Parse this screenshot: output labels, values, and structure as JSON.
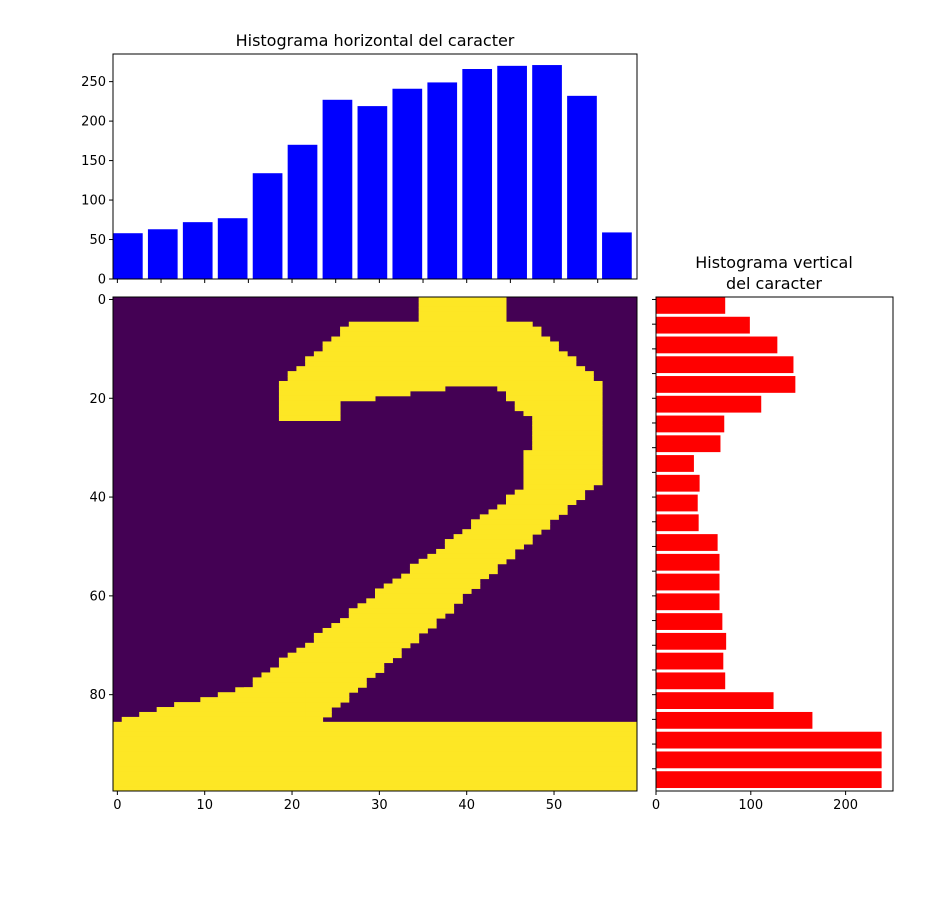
{
  "colors": {
    "top_bars": "#0000ff",
    "right_bars": "#ff0000",
    "image_background": "#440154",
    "image_foreground": "#fde725"
  },
  "chart_data": [
    {
      "type": "bar",
      "title": "Histograma horizontal del caracter",
      "xlabel": "",
      "ylabel": "",
      "x": [
        0,
        4,
        8,
        12,
        16,
        20,
        24,
        28,
        32,
        36,
        40,
        44,
        48,
        52,
        56
      ],
      "values": [
        58,
        63,
        72,
        77,
        134,
        170,
        227,
        219,
        241,
        249,
        266,
        270,
        271,
        232,
        59
      ],
      "ylim": [
        0,
        285
      ],
      "xlim": [
        -0.5,
        59.5
      ],
      "yticks": [
        "0",
        "50",
        "100",
        "150",
        "200",
        "250"
      ],
      "color": "#0000ff"
    },
    {
      "type": "bar",
      "orientation": "horizontal",
      "title_lines": [
        "Histograma vertical",
        "del caracter"
      ],
      "y": [
        0,
        4,
        8,
        12,
        16,
        20,
        24,
        28,
        32,
        36,
        40,
        44,
        48,
        52,
        56,
        60,
        64,
        68,
        72,
        76,
        80,
        84,
        88,
        92,
        96
      ],
      "values": [
        73,
        99,
        128,
        145,
        147,
        111,
        72,
        68,
        40,
        46,
        44,
        45,
        65,
        67,
        67,
        67,
        70,
        74,
        71,
        73,
        124,
        165,
        238,
        238,
        238
      ],
      "xlim": [
        0,
        250
      ],
      "xticks": [
        "0",
        "100",
        "200"
      ],
      "color": "#ff0000"
    },
    {
      "type": "heatmap",
      "width": 60,
      "height": 100,
      "xticks": [
        "0",
        "10",
        "20",
        "30",
        "40",
        "50"
      ],
      "yticks": [
        "0",
        "20",
        "40",
        "60",
        "80"
      ],
      "colormap": "viridis",
      "value_range": [
        0,
        1
      ]
    }
  ]
}
